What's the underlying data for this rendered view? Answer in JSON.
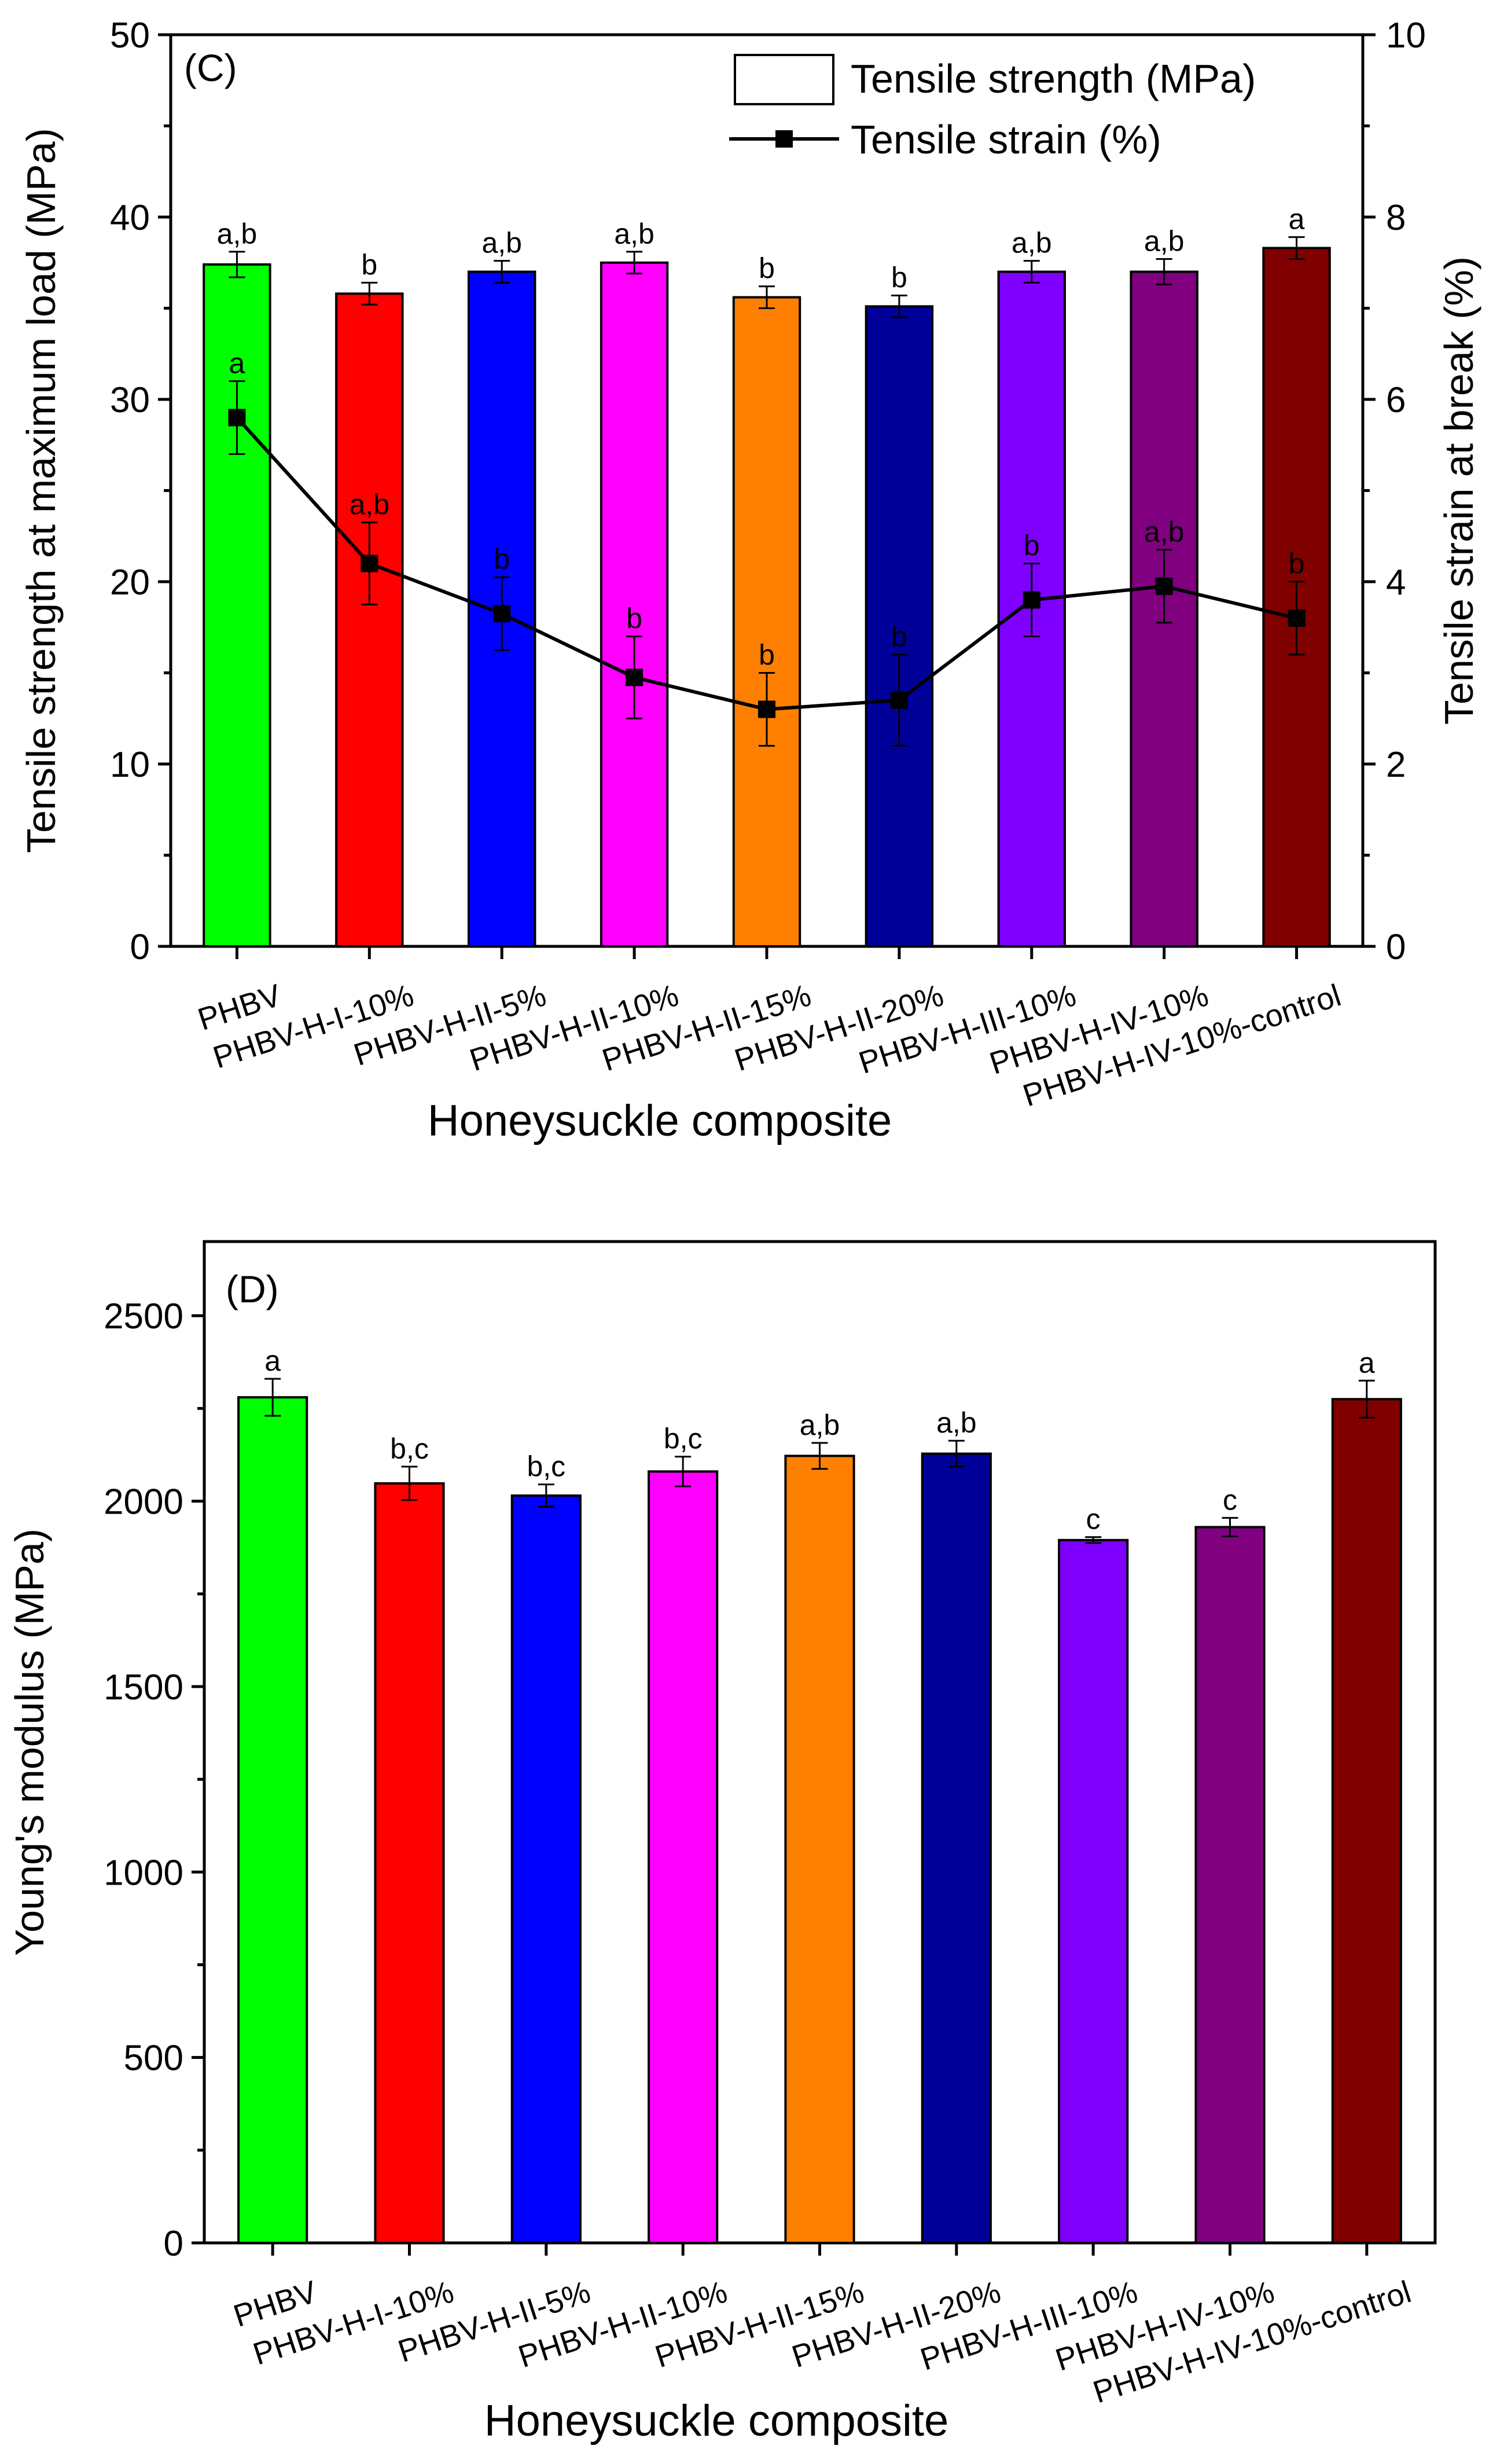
{
  "chart_data": [
    {
      "type": "bar",
      "panel_label": "(C)",
      "title": "",
      "categories": [
        "PHBV",
        "PHBV-H-I-10%",
        "PHBV-H-II-5%",
        "PHBV-H-II-10%",
        "PHBV-H-II-15%",
        "PHBV-H-II-20%",
        "PHBV-H-III-10%",
        "PHBV-H-IV-10%",
        "PHBV-H-IV-10%-control"
      ],
      "bar_colors": [
        "#00ff00",
        "#ff0000",
        "#0000ff",
        "#ff00ff",
        "#ff8000",
        "#000099",
        "#8000ff",
        "#800080",
        "#800000"
      ],
      "xlabel": "Honeysuckle composite",
      "ylabel": "Tensile strength at maximum load (MPa)",
      "y2label": "Tensile strain at break (%)",
      "ylim": [
        0,
        50
      ],
      "y2lim": [
        0,
        10
      ],
      "yticks": [
        "0",
        "10",
        "20",
        "30",
        "40",
        "50"
      ],
      "y2ticks": [
        "0",
        "2",
        "4",
        "6",
        "8",
        "10"
      ],
      "legend_position": "top-right",
      "legend": [
        "Tensile strength (MPa)",
        "Tensile strain (%)"
      ],
      "series": [
        {
          "name": "Tensile strength (MPa)",
          "kind": "bar",
          "axis": "left",
          "values": [
            37.4,
            35.8,
            37.0,
            37.5,
            35.6,
            35.1,
            37.0,
            37.0,
            38.3
          ],
          "errors": [
            0.7,
            0.6,
            0.6,
            0.6,
            0.6,
            0.6,
            0.6,
            0.7,
            0.6
          ],
          "labels": [
            "a,b",
            "b",
            "a,b",
            "a,b",
            "b",
            "b",
            "a,b",
            "a,b",
            "a"
          ]
        },
        {
          "name": "Tensile strain (%)",
          "kind": "line",
          "axis": "right",
          "values": [
            5.8,
            4.2,
            3.65,
            2.95,
            2.6,
            2.7,
            3.8,
            3.95,
            3.6
          ],
          "errors": [
            0.4,
            0.45,
            0.4,
            0.45,
            0.4,
            0.5,
            0.4,
            0.4,
            0.4
          ],
          "labels": [
            "a",
            "a,b",
            "b",
            "b",
            "b",
            "b",
            "b",
            "a,b",
            "b"
          ]
        }
      ]
    },
    {
      "type": "bar",
      "panel_label": "(D)",
      "title": "",
      "categories": [
        "PHBV",
        "PHBV-H-I-10%",
        "PHBV-H-II-5%",
        "PHBV-H-II-10%",
        "PHBV-H-II-15%",
        "PHBV-H-II-20%",
        "PHBV-H-III-10%",
        "PHBV-H-IV-10%",
        "PHBV-H-IV-10%-control"
      ],
      "bar_colors": [
        "#00ff00",
        "#ff0000",
        "#0000ff",
        "#ff00ff",
        "#ff8000",
        "#000099",
        "#8000ff",
        "#800080",
        "#800000"
      ],
      "xlabel": "Honeysuckle composite",
      "ylabel": "Young's modulus (MPa)",
      "ylim": [
        0,
        2700
      ],
      "yticks": [
        "0",
        "500",
        "1000",
        "1500",
        "2000",
        "2500"
      ],
      "series": [
        {
          "name": "Young's modulus (MPa)",
          "kind": "bar",
          "values": [
            2280,
            2048,
            2015,
            2080,
            2122,
            2128,
            1895,
            1930,
            2275
          ],
          "errors": [
            50,
            45,
            30,
            40,
            35,
            35,
            8,
            25,
            50
          ],
          "labels": [
            "a",
            "b,c",
            "b,c",
            "b,c",
            "a,b",
            "a,b",
            "c",
            "c",
            "a"
          ]
        }
      ]
    }
  ]
}
